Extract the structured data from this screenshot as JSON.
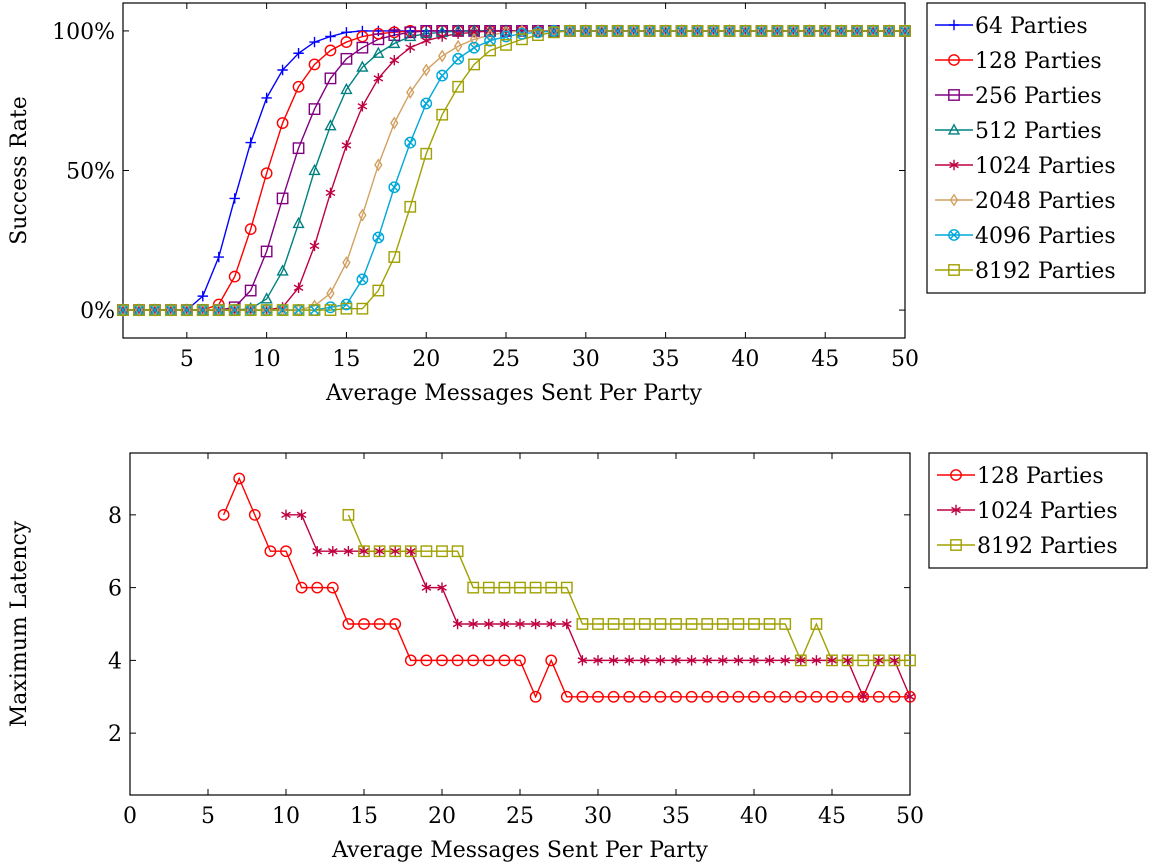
{
  "chart_data": [
    {
      "type": "line",
      "xlabel": "Average Messages Sent Per Party",
      "ylabel": "Success Rate",
      "xlim": [
        1,
        50
      ],
      "ylim": [
        -10,
        110
      ],
      "xticks": [
        5,
        10,
        15,
        20,
        25,
        30,
        35,
        40,
        45,
        50
      ],
      "yticks": [
        0,
        50,
        100
      ],
      "ytick_labels": [
        "0%",
        "50%",
        "100%"
      ],
      "grid": false,
      "legend_position": "outside-right",
      "x": [
        1,
        2,
        3,
        4,
        5,
        6,
        7,
        8,
        9,
        10,
        11,
        12,
        13,
        14,
        15,
        16,
        17,
        18,
        19,
        20,
        21,
        22,
        23,
        24,
        25,
        26,
        27,
        28,
        29,
        30,
        31,
        32,
        33,
        34,
        35,
        36,
        37,
        38,
        39,
        40,
        41,
        42,
        43,
        44,
        45,
        46,
        47,
        48,
        49,
        50
      ],
      "series": [
        {
          "name": "64 Parties",
          "color": "#0000ff",
          "marker": "plus",
          "values": [
            0,
            0,
            0,
            0,
            0,
            5,
            19,
            40,
            60,
            76,
            86,
            92,
            96,
            98,
            99.5,
            100,
            100,
            100,
            100,
            100,
            100,
            100,
            100,
            100,
            100,
            100,
            100,
            100,
            100,
            100,
            100,
            100,
            100,
            100,
            100,
            100,
            100,
            100,
            100,
            100,
            100,
            100,
            100,
            100,
            100,
            100,
            100,
            100,
            100,
            100
          ]
        },
        {
          "name": "128 Parties",
          "color": "#ff0000",
          "marker": "circle",
          "values": [
            0,
            0,
            0,
            0,
            0,
            0,
            2,
            12,
            29,
            49,
            67,
            80,
            88,
            93,
            96,
            98,
            99,
            99.5,
            100,
            100,
            100,
            100,
            100,
            100,
            100,
            100,
            100,
            100,
            100,
            100,
            100,
            100,
            100,
            100,
            100,
            100,
            100,
            100,
            100,
            100,
            100,
            100,
            100,
            100,
            100,
            100,
            100,
            100,
            100,
            100
          ]
        },
        {
          "name": "256 Parties",
          "color": "#800080",
          "marker": "square",
          "values": [
            0,
            0,
            0,
            0,
            0,
            0,
            0,
            1,
            7,
            21,
            40,
            58,
            72,
            83,
            90,
            94,
            97,
            98.5,
            99.5,
            100,
            100,
            100,
            100,
            100,
            100,
            100,
            100,
            100,
            100,
            100,
            100,
            100,
            100,
            100,
            100,
            100,
            100,
            100,
            100,
            100,
            100,
            100,
            100,
            100,
            100,
            100,
            100,
            100,
            100,
            100
          ]
        },
        {
          "name": "512 Parties",
          "color": "#008080",
          "marker": "triangle",
          "values": [
            0,
            0,
            0,
            0,
            0,
            0,
            0,
            0,
            0.5,
            4,
            14,
            31,
            50,
            66,
            79,
            87,
            92,
            95.5,
            98,
            99,
            99.5,
            100,
            100,
            100,
            100,
            100,
            100,
            100,
            100,
            100,
            100,
            100,
            100,
            100,
            100,
            100,
            100,
            100,
            100,
            100,
            100,
            100,
            100,
            100,
            100,
            100,
            100,
            100,
            100,
            100
          ]
        },
        {
          "name": "1024 Parties",
          "color": "#bf0040",
          "marker": "star",
          "values": [
            0,
            0,
            0,
            0,
            0,
            0,
            0,
            0,
            0,
            0,
            1,
            8,
            23,
            42,
            59,
            73,
            83,
            89.5,
            94,
            96.5,
            98,
            99,
            99.5,
            100,
            100,
            100,
            100,
            100,
            100,
            100,
            100,
            100,
            100,
            100,
            100,
            100,
            100,
            100,
            100,
            100,
            100,
            100,
            100,
            100,
            100,
            100,
            100,
            100,
            100,
            100
          ]
        },
        {
          "name": "2048 Parties",
          "color": "#d2a060",
          "marker": "diamond",
          "values": [
            0,
            0,
            0,
            0,
            0,
            0,
            0,
            0,
            0,
            0,
            0,
            0,
            1.5,
            6,
            17,
            34,
            52,
            67,
            78,
            86,
            91,
            94.5,
            97,
            98.5,
            99.5,
            100,
            100,
            100,
            100,
            100,
            100,
            100,
            100,
            100,
            100,
            100,
            100,
            100,
            100,
            100,
            100,
            100,
            100,
            100,
            100,
            100,
            100,
            100,
            100,
            100
          ]
        },
        {
          "name": "4096 Parties",
          "color": "#00a8d8",
          "marker": "otimes",
          "values": [
            0,
            0,
            0,
            0,
            0,
            0,
            0,
            0,
            0,
            0,
            0,
            0,
            0,
            1,
            2,
            11,
            26,
            44,
            60,
            74,
            84,
            90,
            94,
            96.5,
            98,
            99,
            99.5,
            100,
            100,
            100,
            100,
            100,
            100,
            100,
            100,
            100,
            100,
            100,
            100,
            100,
            100,
            100,
            100,
            100,
            100,
            100,
            100,
            100,
            100,
            100
          ]
        },
        {
          "name": "8192 Parties",
          "color": "#a0a000",
          "marker": "square",
          "values": [
            0,
            0,
            0,
            0,
            0,
            0,
            0,
            0,
            0,
            0,
            0,
            0,
            0,
            0,
            0.5,
            0.5,
            7,
            19,
            37,
            56,
            70,
            80,
            88,
            93,
            95,
            97,
            98.5,
            99.5,
            100,
            100,
            100,
            100,
            100,
            100,
            100,
            100,
            100,
            100,
            100,
            100,
            100,
            100,
            100,
            100,
            100,
            100,
            100,
            100,
            100,
            100
          ]
        }
      ]
    },
    {
      "type": "line",
      "xlabel": "Average Messages Sent Per Party",
      "ylabel": "Maximum Latency",
      "xlim": [
        0,
        50
      ],
      "ylim": [
        0.3,
        9.7
      ],
      "xticks": [
        0,
        5,
        10,
        15,
        20,
        25,
        30,
        35,
        40,
        45,
        50
      ],
      "yticks": [
        2,
        4,
        6,
        8
      ],
      "grid": false,
      "legend_position": "outside-right",
      "series": [
        {
          "name": "128 Parties",
          "color": "#ff0000",
          "marker": "circle",
          "x": [
            6,
            7,
            8,
            9,
            10,
            11,
            12,
            13,
            14,
            15,
            16,
            17,
            18,
            19,
            20,
            21,
            22,
            23,
            24,
            25,
            26,
            27,
            28,
            29,
            30,
            31,
            32,
            33,
            34,
            35,
            36,
            37,
            38,
            39,
            40,
            41,
            42,
            43,
            44,
            45,
            46,
            47,
            48,
            49,
            50
          ],
          "values": [
            8,
            9,
            8,
            7,
            7,
            6,
            6,
            6,
            5,
            5,
            5,
            5,
            4,
            4,
            4,
            4,
            4,
            4,
            4,
            4,
            3,
            4,
            3,
            3,
            3,
            3,
            3,
            3,
            3,
            3,
            3,
            3,
            3,
            3,
            3,
            3,
            3,
            3,
            3,
            3,
            3,
            3,
            3,
            3,
            3
          ]
        },
        {
          "name": "1024 Parties",
          "color": "#bf0040",
          "marker": "star",
          "x": [
            10,
            11,
            12,
            13,
            14,
            15,
            16,
            17,
            18,
            19,
            20,
            21,
            22,
            23,
            24,
            25,
            26,
            27,
            28,
            29,
            30,
            31,
            32,
            33,
            34,
            35,
            36,
            37,
            38,
            39,
            40,
            41,
            42,
            43,
            44,
            45,
            46,
            47,
            48,
            49,
            50
          ],
          "values": [
            8,
            8,
            7,
            7,
            7,
            7,
            7,
            7,
            7,
            6,
            6,
            5,
            5,
            5,
            5,
            5,
            5,
            5,
            5,
            4,
            4,
            4,
            4,
            4,
            4,
            4,
            4,
            4,
            4,
            4,
            4,
            4,
            4,
            4,
            4,
            4,
            4,
            3,
            4,
            4,
            3
          ]
        },
        {
          "name": "8192 Parties",
          "color": "#a0a000",
          "marker": "square",
          "x": [
            14,
            15,
            16,
            17,
            18,
            19,
            20,
            21,
            22,
            23,
            24,
            25,
            26,
            27,
            28,
            29,
            30,
            31,
            32,
            33,
            34,
            35,
            36,
            37,
            38,
            39,
            40,
            41,
            42,
            43,
            44,
            45,
            46,
            47,
            48,
            49,
            50
          ],
          "values": [
            8,
            7,
            7,
            7,
            7,
            7,
            7,
            7,
            6,
            6,
            6,
            6,
            6,
            6,
            6,
            5,
            5,
            5,
            5,
            5,
            5,
            5,
            5,
            5,
            5,
            5,
            5,
            5,
            5,
            4,
            5,
            4,
            4,
            4,
            4,
            4,
            4
          ]
        }
      ]
    }
  ]
}
